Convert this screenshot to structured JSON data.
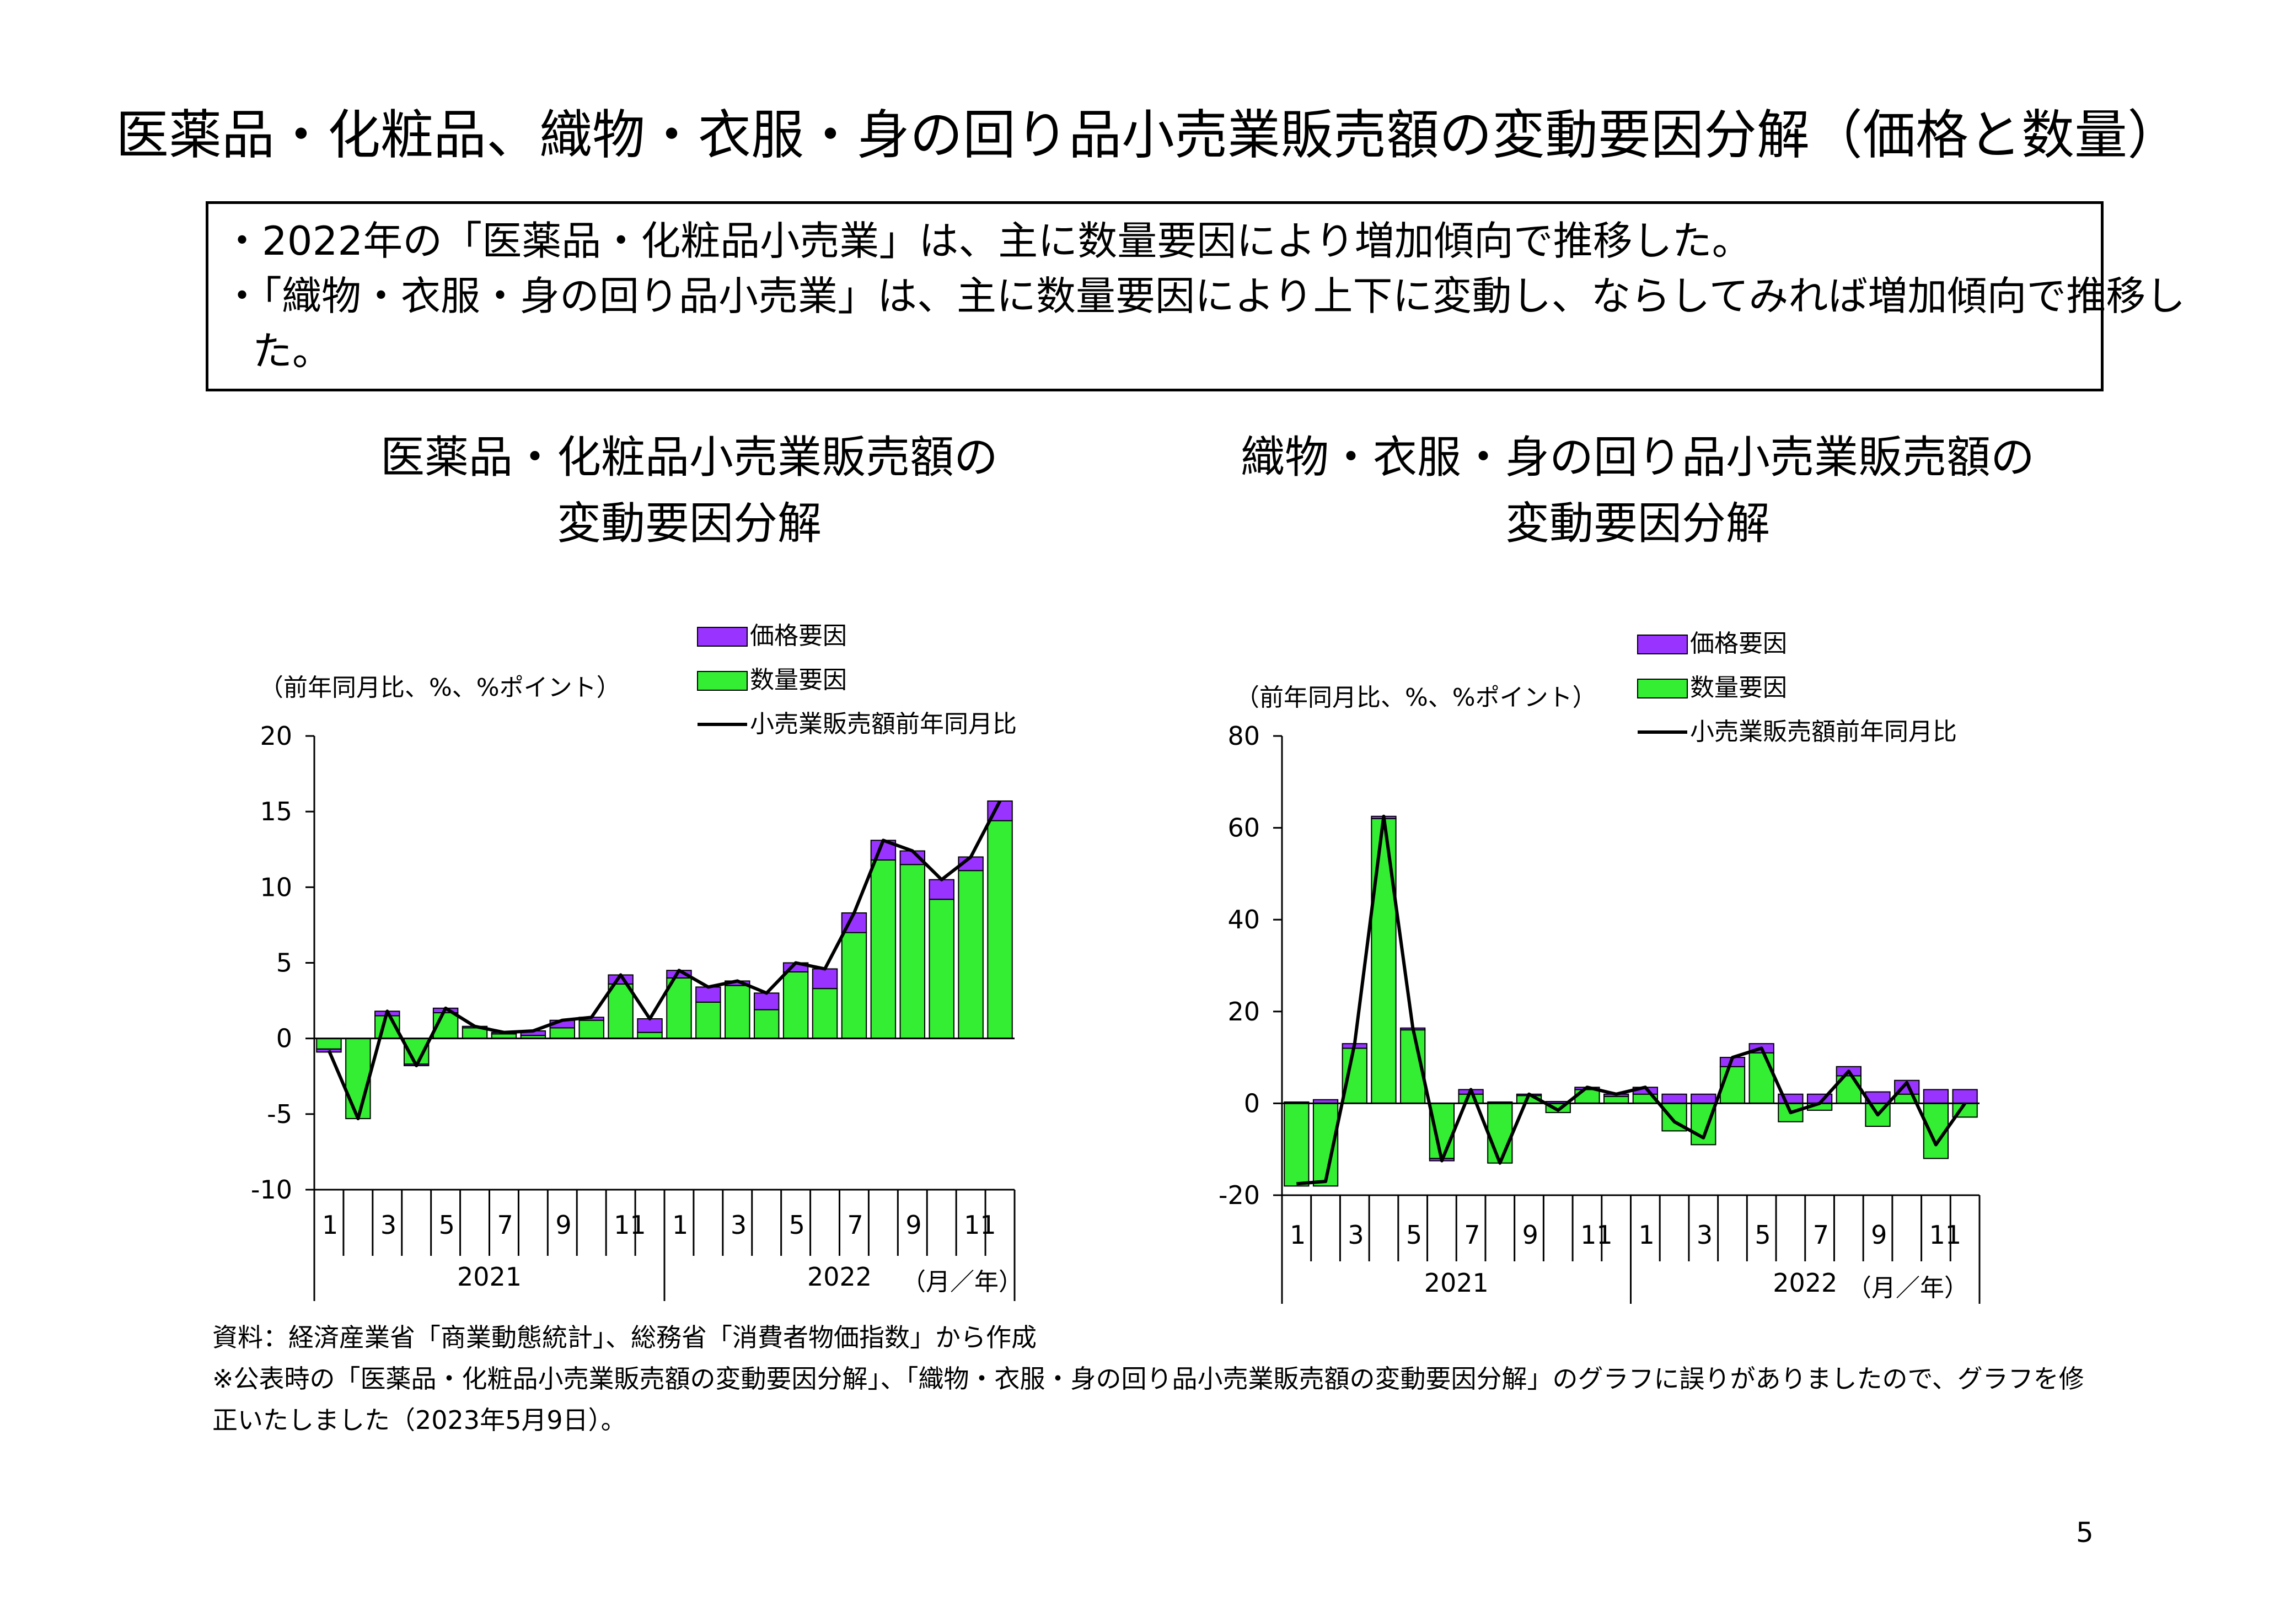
{
  "page": {
    "title": "医薬品・化粧品、織物・衣服・身の回り品小売業販売額の変動要因分解（価格と数量）",
    "summary": [
      "・2022年の「医薬品・化粧品小売業」は、主に数量要因により増加傾向で推移した。",
      "・「織物・衣服・身の回り品小売業」は、主に数量要因により上下に変動し、ならしてみれば増加傾向で推移し",
      "た。"
    ],
    "source_lines": [
      "資料：経済産業省「商業動態統計」、総務省「消費者物価指数」から作成",
      "※公表時の「医薬品・化粧品小売業販売額の変動要因分解」、「織物・衣服・身の回り品小売業販売額の変動要因分解」のグラフに誤りがありましたので、グラフを修",
      "正いたしました（2023年5月9日）。"
    ],
    "page_number": "5"
  },
  "colors": {
    "price": "#9933FF",
    "quantity": "#33EE33",
    "line": "#000000"
  },
  "chart_data": [
    {
      "type": "bar",
      "stacked": true,
      "title_lines": [
        "医薬品・化粧品小売業販売額の",
        "変動要因分解"
      ],
      "ylabel": "（前年同月比、%、%ポイント）",
      "xunit": "（月／年）",
      "ylim": [
        -10,
        20
      ],
      "yticks": [
        -10,
        -5,
        0,
        5,
        10,
        15,
        20
      ],
      "month_labels": [
        "1",
        "",
        "3",
        "",
        "5",
        "",
        "7",
        "",
        "9",
        "",
        "11",
        "",
        "1",
        "",
        "3",
        "",
        "5",
        "",
        "7",
        "",
        "9",
        "",
        "11",
        ""
      ],
      "year_labels": [
        "2021",
        "2022"
      ],
      "legend_position": "top-right",
      "series": [
        {
          "name": "価格要因",
          "kind": "bar",
          "values": [
            -0.2,
            0,
            0.3,
            -0.1,
            0.3,
            0.1,
            0.1,
            0.3,
            0.5,
            0.2,
            0.6,
            0.9,
            0.5,
            1.0,
            0.3,
            1.1,
            0.6,
            1.3,
            1.3,
            1.3,
            0.9,
            1.3,
            0.9,
            1.3
          ]
        },
        {
          "name": "数量要因",
          "kind": "bar",
          "values": [
            -0.7,
            -5.3,
            1.5,
            -1.7,
            1.7,
            0.7,
            0.3,
            0.2,
            0.7,
            1.2,
            3.6,
            0.4,
            4.0,
            2.4,
            3.5,
            1.9,
            4.4,
            3.3,
            7.0,
            11.8,
            11.5,
            9.2,
            11.1,
            14.4
          ]
        },
        {
          "name": "小売業販売額前年同月比",
          "kind": "line",
          "values": [
            -0.8,
            -5.3,
            1.8,
            -1.8,
            2.0,
            0.8,
            0.4,
            0.5,
            1.2,
            1.4,
            4.2,
            1.3,
            4.5,
            3.4,
            3.8,
            3.0,
            5.0,
            4.6,
            8.3,
            13.1,
            12.4,
            10.5,
            12.0,
            15.7
          ]
        }
      ]
    },
    {
      "type": "bar",
      "stacked": true,
      "title_lines": [
        "織物・衣服・身の回り品小売業販売額の",
        "変動要因分解"
      ],
      "ylabel": "（前年同月比、%、%ポイント）",
      "xunit": "（月／年）",
      "ylim": [
        -20,
        80
      ],
      "yticks": [
        -20,
        0,
        20,
        40,
        60,
        80
      ],
      "month_labels": [
        "1",
        "",
        "3",
        "",
        "5",
        "",
        "7",
        "",
        "9",
        "",
        "11",
        "",
        "1",
        "",
        "3",
        "",
        "5",
        "",
        "7",
        "",
        "9",
        "",
        "11",
        ""
      ],
      "year_labels": [
        "2021",
        "2022"
      ],
      "legend_position": "top-right",
      "series": [
        {
          "name": "価格要因",
          "kind": "bar",
          "values": [
            0.3,
            0.8,
            1.0,
            0.5,
            0.4,
            -0.5,
            1.0,
            0.3,
            0.3,
            0.4,
            0.5,
            0.5,
            1.5,
            2.0,
            2.0,
            2.0,
            2.0,
            2.0,
            2.0,
            2.0,
            2.5,
            3.0,
            3.0,
            3.0
          ]
        },
        {
          "name": "数量要因",
          "kind": "bar",
          "values": [
            -18.0,
            -18.0,
            12.0,
            62.0,
            16.0,
            -12.0,
            2.0,
            -13.0,
            1.7,
            -2.0,
            3.0,
            1.5,
            2.0,
            -6.0,
            -9.0,
            8.0,
            11.0,
            -4.0,
            -1.5,
            6.0,
            -5.0,
            2.0,
            -12.0,
            -3.0
          ]
        },
        {
          "name": "小売業販売額前年同月比",
          "kind": "line",
          "values": [
            -17.5,
            -17.0,
            13.0,
            62.5,
            16.5,
            -12.5,
            3.0,
            -13.0,
            2.0,
            -1.5,
            3.5,
            2.0,
            3.5,
            -4.0,
            -7.5,
            10.0,
            12.0,
            -2.0,
            0.0,
            7.0,
            -2.5,
            4.5,
            -9.0,
            0.0
          ]
        }
      ]
    }
  ]
}
